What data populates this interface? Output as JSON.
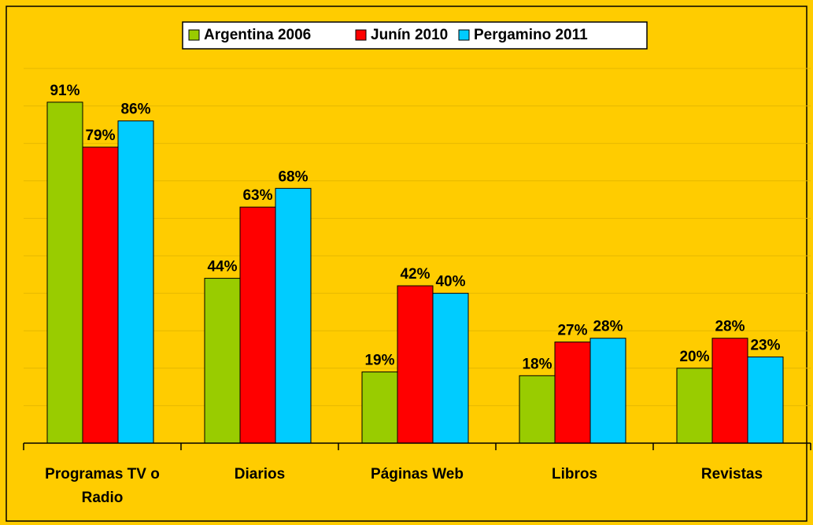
{
  "chart_data": {
    "type": "bar",
    "categories": [
      "Programas TV o Radio",
      "Diarios",
      "Páginas Web",
      "Libros",
      "Revistas"
    ],
    "series": [
      {
        "name": "Argentina 2006",
        "color": "#99CC00",
        "values": [
          91,
          44,
          19,
          18,
          20
        ],
        "value_labels": [
          "91%",
          "44%",
          "19%",
          "18%",
          "20%"
        ]
      },
      {
        "name": "Junín 2010",
        "color": "#FF0000",
        "values": [
          79,
          63,
          42,
          27,
          28
        ],
        "value_labels": [
          "79%",
          "63%",
          "42%",
          "27%",
          "28%"
        ]
      },
      {
        "name": "Pergamino 2011",
        "color": "#00CCFF",
        "values": [
          86,
          68,
          40,
          28,
          23
        ],
        "value_labels": [
          "86%",
          "68%",
          "40%",
          "28%",
          "23%"
        ]
      }
    ],
    "ylim": [
      0,
      100
    ],
    "yticks": [
      0,
      10,
      20,
      30,
      40,
      50,
      60,
      70,
      80,
      90,
      100
    ],
    "grid": true,
    "legend": "top"
  }
}
